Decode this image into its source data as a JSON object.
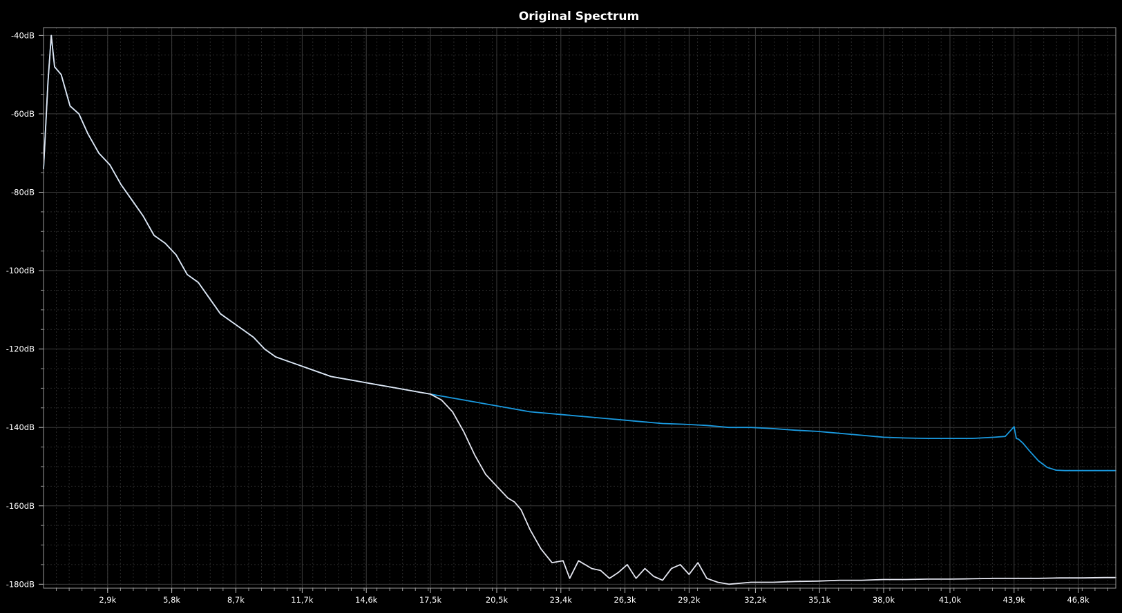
{
  "chart_data": {
    "type": "line",
    "title": "Original Spectrum",
    "xlabel": "",
    "ylabel": "",
    "xlim": [
      0,
      48500
    ],
    "ylim": [
      -181,
      -38
    ],
    "grid": true,
    "legend": "none",
    "x_tick_values": [
      2900,
      5800,
      8700,
      11700,
      14600,
      17500,
      20500,
      23400,
      26300,
      29200,
      32200,
      35100,
      38000,
      41000,
      43900,
      46800
    ],
    "x_tick_labels": [
      "2,9k",
      "5,8k",
      "8,7k",
      "11,7k",
      "14,6k",
      "17,5k",
      "20,5k",
      "23,4k",
      "26,3k",
      "29,2k",
      "32,2k",
      "35,1k",
      "38,0k",
      "41,0k",
      "43,9k",
      "46,8k"
    ],
    "y_tick_values": [
      -40,
      -60,
      -80,
      -100,
      -120,
      -140,
      -160,
      -180
    ],
    "y_tick_labels": [
      "-40dB",
      "-60dB",
      "-80dB",
      "-100dB",
      "-120dB",
      "-140dB",
      "-160dB",
      "-180dB"
    ],
    "series": [
      {
        "color": "#1a9ae0",
        "x": [
          0,
          200,
          350,
          500,
          800,
          1200,
          1600,
          2000,
          2500,
          3000,
          3500,
          4000,
          4500,
          5000,
          5500,
          6000,
          6500,
          7000,
          7500,
          8000,
          8500,
          9000,
          9500,
          10000,
          10500,
          11000,
          11500,
          12000,
          13000,
          14000,
          15000,
          16000,
          17000,
          17500,
          18000,
          18500,
          19000,
          20000,
          21000,
          22000,
          23000,
          24000,
          25000,
          26000,
          27000,
          28000,
          29000,
          30000,
          31000,
          32000,
          33000,
          34000,
          35000,
          36000,
          37000,
          38000,
          39000,
          40000,
          41000,
          42000,
          43000,
          43500,
          43900,
          44000,
          44100,
          44300,
          44600,
          45000,
          45400,
          45800,
          46200,
          46800,
          47500,
          48000,
          48500
        ],
        "y": [
          -74,
          -52,
          -40,
          -48,
          -50,
          -58,
          -60,
          -65,
          -70,
          -73,
          -78,
          -82,
          -86,
          -91,
          -93,
          -96,
          -101,
          -103,
          -107,
          -111,
          -113,
          -115,
          -117,
          -120,
          -122,
          -123,
          -124,
          -125,
          -127,
          -128,
          -129,
          -130,
          -131,
          -131.5,
          -132,
          -132.5,
          -133,
          -134,
          -135,
          -136,
          -136.5,
          -137,
          -137.5,
          -138,
          -138.5,
          -139,
          -139.2,
          -139.5,
          -140,
          -140,
          -140.3,
          -140.7,
          -141,
          -141.5,
          -142,
          -142.5,
          -142.7,
          -142.8,
          -142.8,
          -142.8,
          -142.5,
          -142.3,
          -139.8,
          -142.8,
          -143,
          -144,
          -146,
          -148.5,
          -150.2,
          -150.9,
          -151,
          -151,
          -151,
          -151,
          -151
        ]
      },
      {
        "color": "#e4e6f0",
        "x": [
          0,
          200,
          350,
          500,
          800,
          1200,
          1600,
          2000,
          2500,
          3000,
          3500,
          4000,
          4500,
          5000,
          5500,
          6000,
          6500,
          7000,
          7500,
          8000,
          8500,
          9000,
          9500,
          10000,
          10500,
          11000,
          11500,
          12000,
          13000,
          14000,
          15000,
          16000,
          17000,
          17500,
          18000,
          18500,
          19000,
          19500,
          20000,
          20500,
          21000,
          21300,
          21600,
          22000,
          22500,
          23000,
          23500,
          23800,
          24200,
          24800,
          25200,
          25600,
          26000,
          26400,
          26800,
          27200,
          27600,
          28000,
          28400,
          28800,
          29200,
          29600,
          30000,
          30500,
          31000,
          32000,
          33000,
          34000,
          35000,
          36000,
          37000,
          38000,
          39000,
          40000,
          41000,
          42000,
          43000,
          44000,
          45000,
          46000,
          47000,
          48000,
          48500
        ],
        "y": [
          -74,
          -52,
          -40,
          -48,
          -50,
          -58,
          -60,
          -65,
          -70,
          -73,
          -78,
          -82,
          -86,
          -91,
          -93,
          -96,
          -101,
          -103,
          -107,
          -111,
          -113,
          -115,
          -117,
          -120,
          -122,
          -123,
          -124,
          -125,
          -127,
          -128,
          -129,
          -130,
          -131,
          -131.5,
          -133,
          -136,
          -141,
          -147,
          -152,
          -155,
          -158,
          -159,
          -161,
          -166,
          -171,
          -174.5,
          -174,
          -178.5,
          -174,
          -176,
          -176.5,
          -178.5,
          -177,
          -175,
          -178.5,
          -176,
          -178,
          -179,
          -176,
          -175,
          -177.5,
          -174.5,
          -178.5,
          -179.5,
          -180,
          -179.5,
          -179.5,
          -179.3,
          -179.2,
          -179,
          -179,
          -178.8,
          -178.8,
          -178.7,
          -178.7,
          -178.6,
          -178.5,
          -178.5,
          -178.5,
          -178.4,
          -178.4,
          -178.3,
          -178.3
        ]
      }
    ]
  }
}
